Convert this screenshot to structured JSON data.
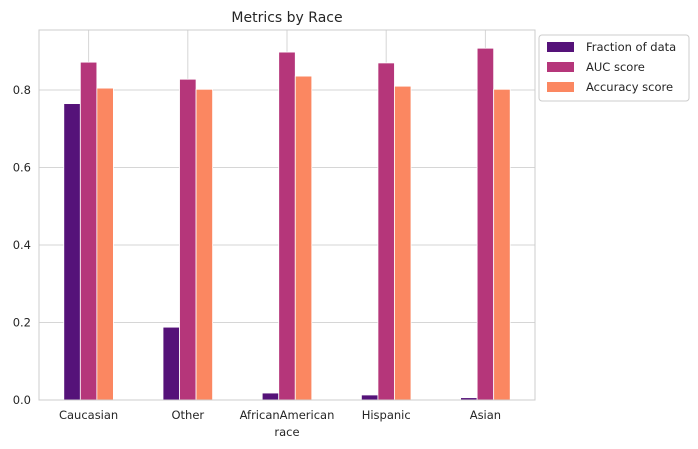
{
  "chart_data": {
    "type": "bar",
    "title": "Metrics by Race",
    "xlabel": "race",
    "ylabel": "",
    "categories": [
      "Caucasian",
      "Other",
      "AfricanAmerican",
      "Hispanic",
      "Asian"
    ],
    "series": [
      {
        "name": "Fraction of data",
        "color": "#551279",
        "values": [
          0.765,
          0.188,
          0.018,
          0.013,
          0.006
        ]
      },
      {
        "name": "AUC score",
        "color": "#b5367a",
        "values": [
          0.872,
          0.828,
          0.898,
          0.87,
          0.908
        ]
      },
      {
        "name": "Accuracy score",
        "color": "#fb8761",
        "values": [
          0.805,
          0.802,
          0.836,
          0.81,
          0.802
        ]
      }
    ],
    "ylim": [
      0,
      0.955
    ],
    "yticks": [
      0.0,
      0.2,
      0.4,
      0.6,
      0.8
    ],
    "ytick_labels": [
      "0.0",
      "0.2",
      "0.4",
      "0.6",
      "0.8"
    ],
    "grid": true,
    "legend_position": "outside-top-right"
  }
}
